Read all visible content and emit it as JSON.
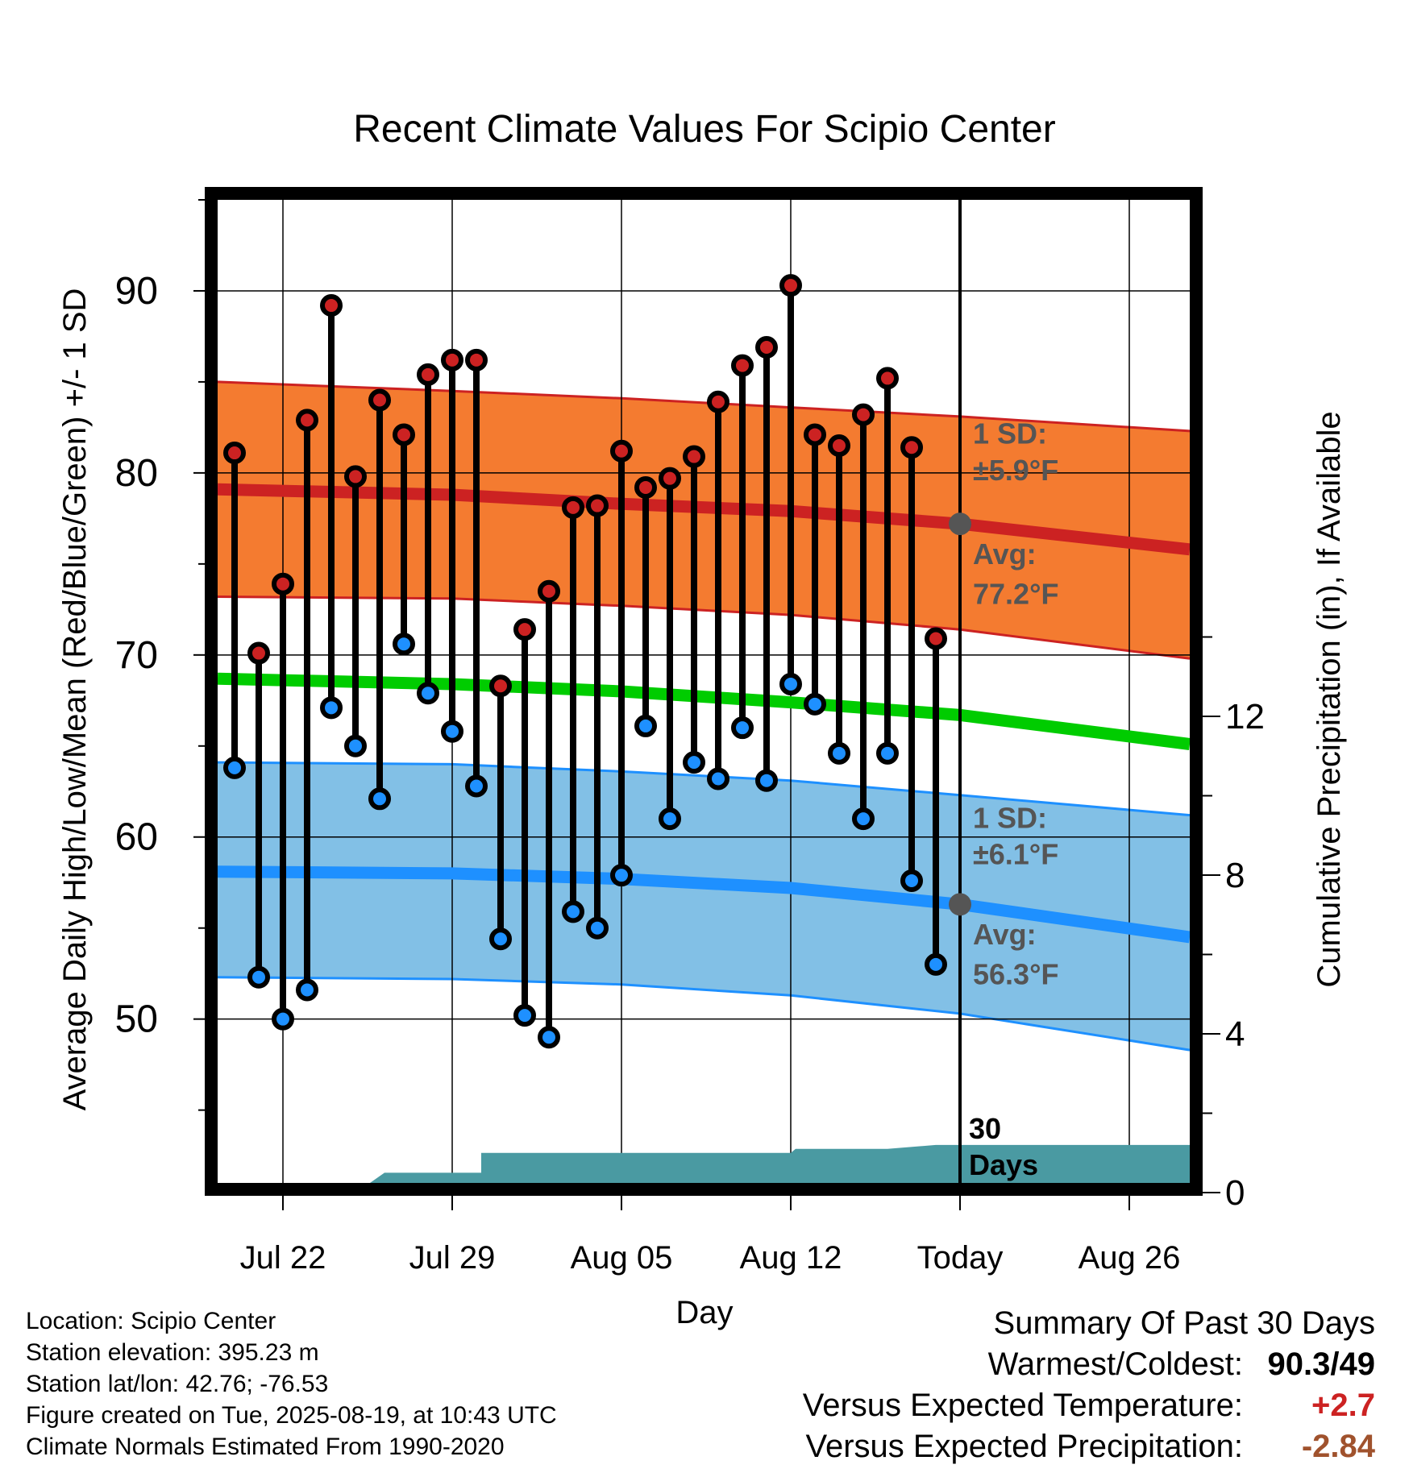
{
  "chart_data": {
    "type": "line",
    "title": "Recent Climate Values For Scipio Center",
    "xlabel": "Day",
    "ylabel": "Average Daily High/Low/Mean (Red/Blue/Green) +/- 1 SD",
    "y2label": "Cumulative Precipitation (in), If Available",
    "x_ticks": [
      {
        "day": 22,
        "label": "Jul 22"
      },
      {
        "day": 29,
        "label": "Jul 29"
      },
      {
        "day": 36,
        "label": "Aug 05"
      },
      {
        "day": 43,
        "label": "Aug 12"
      },
      {
        "day": 50,
        "label": "Today"
      },
      {
        "day": 57,
        "label": "Aug 26"
      }
    ],
    "x_range_days": [
      19.3,
      59.5
    ],
    "ylim": [
      41,
      95
    ],
    "y_ticks": [
      50,
      60,
      70,
      80,
      90
    ],
    "y2lim": [
      0,
      16
    ],
    "y2_ticks": [
      0,
      4,
      8,
      12
    ],
    "normal_high": {
      "days": [
        19.3,
        29,
        36,
        43,
        50,
        59.5
      ],
      "mean": [
        79.1,
        78.8,
        78.3,
        77.9,
        77.2,
        75.8
      ],
      "upper": [
        85.0,
        84.5,
        84.1,
        83.6,
        83.1,
        82.3
      ],
      "lower": [
        73.2,
        73.1,
        72.7,
        72.2,
        71.4,
        69.8
      ],
      "sd_label": "1 SD:",
      "sd_value": "±5.9°F",
      "avg_label": "Avg:",
      "avg_value": "77.2°F"
    },
    "normal_mean": {
      "days": [
        19.3,
        29,
        36,
        43,
        50,
        59.5
      ],
      "mean": [
        68.7,
        68.4,
        68.0,
        67.4,
        66.7,
        65.1
      ]
    },
    "normal_low": {
      "days": [
        19.3,
        29,
        36,
        43,
        50,
        59.5
      ],
      "mean": [
        58.1,
        58.0,
        57.7,
        57.2,
        56.3,
        54.5
      ],
      "upper": [
        64.1,
        64.0,
        63.6,
        63.1,
        62.3,
        61.2
      ],
      "lower": [
        52.3,
        52.2,
        51.9,
        51.3,
        50.3,
        48.3
      ],
      "sd_label": "1 SD:",
      "sd_value": "±6.1°F",
      "avg_label": "Avg:",
      "avg_value": "56.3°F"
    },
    "observed_days": [
      20,
      21,
      22,
      23,
      24,
      25,
      26,
      27,
      28,
      29,
      30,
      31,
      32,
      33,
      34,
      35,
      36,
      37,
      38,
      39,
      40,
      41,
      42,
      43,
      44,
      45,
      46,
      47,
      48,
      49
    ],
    "observed_high": [
      81.1,
      70.1,
      73.9,
      82.9,
      89.2,
      79.8,
      84.0,
      82.1,
      85.4,
      86.2,
      86.2,
      68.3,
      71.4,
      73.5,
      78.1,
      78.2,
      81.2,
      79.2,
      79.7,
      80.9,
      83.9,
      85.9,
      86.9,
      90.3,
      82.1,
      81.5,
      83.2,
      85.2,
      81.4,
      70.9
    ],
    "observed_low": [
      63.8,
      52.3,
      50.0,
      51.6,
      67.1,
      65.0,
      62.1,
      70.6,
      67.9,
      65.8,
      62.8,
      54.4,
      50.2,
      49.0,
      55.9,
      55.0,
      57.9,
      66.1,
      61.0,
      64.1,
      63.2,
      66.0,
      63.1,
      68.4,
      67.3,
      64.6,
      61.0,
      64.6,
      57.6,
      53.0
    ],
    "precip_days": [
      19.3,
      23.5,
      24.2,
      25.6,
      26.2,
      29.3,
      30.2,
      30.2,
      32.0,
      36.0,
      42.0,
      43.0,
      43.2,
      47.0,
      49.0,
      50.0,
      59.5
    ],
    "precip_values": [
      0,
      0,
      0,
      0,
      0.5,
      0.5,
      0.5,
      1.0,
      1.0,
      1.0,
      1.0,
      1.0,
      1.1,
      1.1,
      1.2,
      1.2,
      1.2
    ],
    "today_day": 50,
    "today_label_line1": "30",
    "today_label_line2": "Days",
    "colors": {
      "high_band": "#f47b30",
      "high_line": "#cc2222",
      "high_band_edge": "#cc2222",
      "mean_line": "#00cc00",
      "low_band": "#82c0e6",
      "low_line": "#1e90ff",
      "low_band_edge": "#1e90ff",
      "precip": "#4a9aa2",
      "high_dot": "#cc2222",
      "low_dot": "#1e90ff",
      "avg_dot": "#555555",
      "annot_text": "#555555"
    }
  },
  "info": {
    "location": "Location: Scipio Center",
    "elevation": "Station elevation: 395.23 m",
    "latlon": "Station lat/lon: 42.76; -76.53",
    "created": "Figure created on Tue, 2025-08-19, at 10:43 UTC",
    "normals": "Climate Normals Estimated From 1990-2020"
  },
  "summary": {
    "title": "Summary Of Past 30 Days",
    "warmest_label": "Warmest/Coldest:",
    "warmest_value": "90.3/49",
    "temp_label": "Versus Expected Temperature:",
    "temp_value": "+2.7",
    "temp_color": "#cc2222",
    "precip_label": "Versus Expected Precipitation:",
    "precip_value": "-2.84",
    "precip_color": "#a0522d"
  }
}
